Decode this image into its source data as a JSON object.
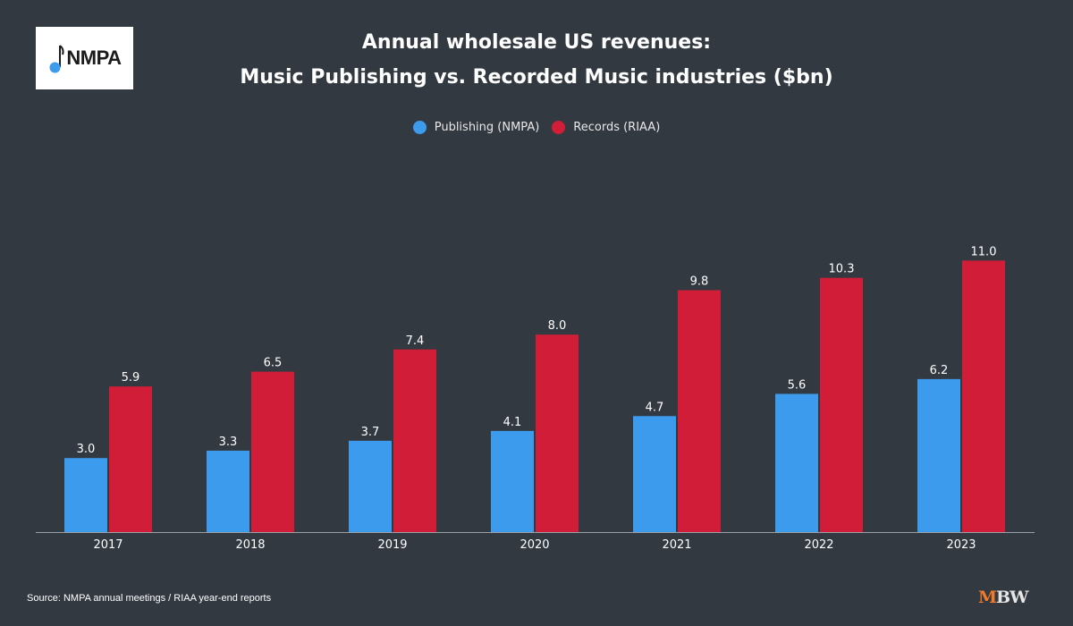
{
  "logo": {
    "text": "NMPA"
  },
  "title_line1": "Annual wholesale US revenues:",
  "title_line2": "Music Publishing vs. Recorded Music industries ($bn)",
  "source": "Source: NMPA annual meetings / RIAA year-end reports",
  "brand": {
    "prefix": "M",
    "rest": "BW"
  },
  "colors": {
    "background": "#333941",
    "publishing": "#3d9bee",
    "records": "#d21d38",
    "accent": "#f07a2a"
  },
  "chart_data": {
    "type": "bar",
    "title": "Annual wholesale US revenues: Music Publishing vs. Recorded Music industries ($bn)",
    "categories": [
      "2017",
      "2018",
      "2019",
      "2020",
      "2021",
      "2022",
      "2023"
    ],
    "series": [
      {
        "name": "Publishing (NMPA)",
        "color": "#3d9bee",
        "values": [
          3.0,
          3.3,
          3.7,
          4.1,
          4.7,
          5.6,
          6.2
        ],
        "labels": [
          "3.0",
          "3.3",
          "3.7",
          "4.1",
          "4.7",
          "5.6",
          "6.2"
        ]
      },
      {
        "name": "Records (RIAA)",
        "color": "#d21d38",
        "values": [
          5.9,
          6.5,
          7.4,
          8.0,
          9.8,
          10.3,
          11.0
        ],
        "labels": [
          "5.9",
          "6.5",
          "7.4",
          "8.0",
          "9.8",
          "10.3",
          "11.0"
        ]
      }
    ],
    "ylim": [
      0,
      11
    ],
    "grid": false,
    "legend": "top-center",
    "xlabel": "",
    "ylabel": ""
  }
}
